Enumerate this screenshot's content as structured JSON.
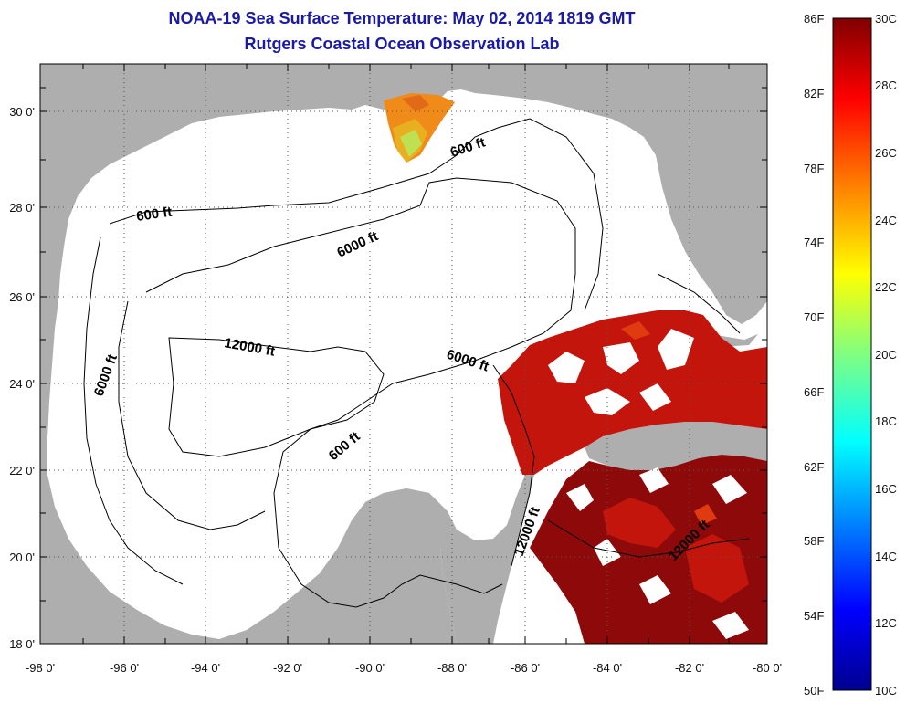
{
  "title": {
    "line1": "NOAA-19 Sea Surface Temperature:  May 02, 2014 1819 GMT",
    "line2": "Rutgers Coastal Ocean Observation Lab"
  },
  "map": {
    "lon_ticks": [
      "-98 0'",
      "-96 0'",
      "-94 0'",
      "-92 0'",
      "-90 0'",
      "-88 0'",
      "-86 0'",
      "-84 0'",
      "-82 0'",
      "-80 0'"
    ],
    "lat_ticks": [
      "30 0'",
      "28 0'",
      "26 0'",
      "24 0'",
      "22 0'",
      "20 0'",
      "18 0'"
    ],
    "contour_labels": [
      "600 ft",
      "600 ft",
      "6000 ft",
      "12000 ft",
      "6000 ft",
      "6000 ft",
      "600 ft",
      "12000 ft",
      "12000 ft"
    ],
    "colors": {
      "land": "#aeaeae",
      "ocean": "#ffffff",
      "sst_warm": "#c4150d",
      "sst_dark": "#8e0a0a",
      "sst_orange": "#f08a18",
      "sst_green": "#bfe050"
    }
  },
  "colorbar": {
    "f_labels": [
      "86F",
      "82F",
      "78F",
      "74F",
      "70F",
      "66F",
      "62F",
      "58F",
      "54F",
      "50F"
    ],
    "c_labels": [
      "30C",
      "28C",
      "26C",
      "24C",
      "22C",
      "20C",
      "18C",
      "16C",
      "14C",
      "12C",
      "10C"
    ],
    "colors": [
      "#00008f",
      "#0000ff",
      "#0080ff",
      "#00ffff",
      "#80ff80",
      "#ffff00",
      "#ff8000",
      "#ff0000",
      "#800000"
    ]
  }
}
